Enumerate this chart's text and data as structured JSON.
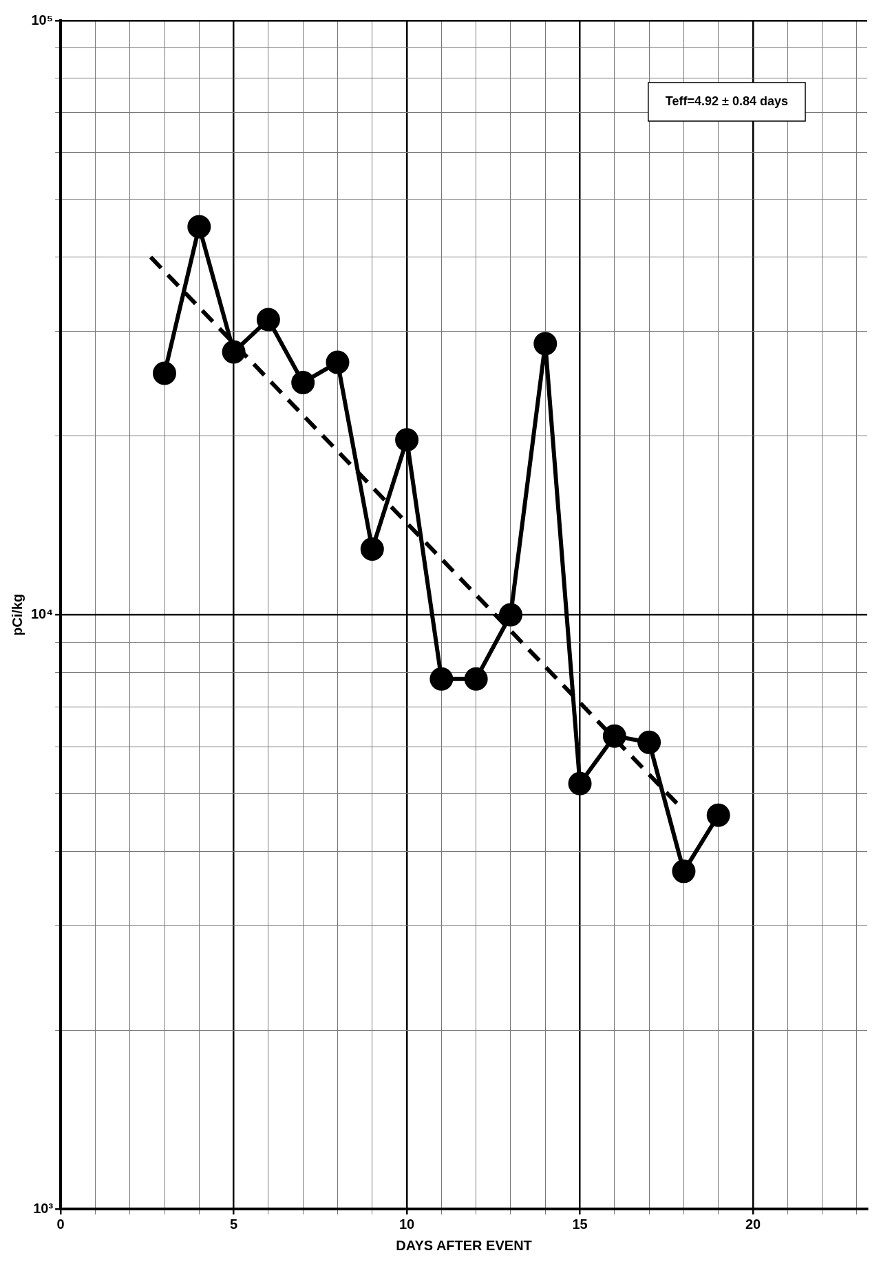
{
  "chart_data": {
    "type": "line",
    "xlabel": "DAYS AFTER EVENT",
    "ylabel": "pCi/kg",
    "xlim": [
      0,
      23.3
    ],
    "ylim": [
      1000,
      100000
    ],
    "log": "y",
    "grid": true,
    "legend": false,
    "xticks": [
      {
        "value": 0,
        "label": "0"
      },
      {
        "value": 1,
        "label": null
      },
      {
        "value": 2,
        "label": null
      },
      {
        "value": 3,
        "label": null
      },
      {
        "value": 4,
        "label": null
      },
      {
        "value": 5,
        "label": "5"
      },
      {
        "value": 6,
        "label": null
      },
      {
        "value": 7,
        "label": null
      },
      {
        "value": 8,
        "label": null
      },
      {
        "value": 9,
        "label": null
      },
      {
        "value": 10,
        "label": "10"
      },
      {
        "value": 11,
        "label": null
      },
      {
        "value": 12,
        "label": null
      },
      {
        "value": 13,
        "label": null
      },
      {
        "value": 14,
        "label": null
      },
      {
        "value": 15,
        "label": "15"
      },
      {
        "value": 16,
        "label": null
      },
      {
        "value": 17,
        "label": null
      },
      {
        "value": 18,
        "label": null
      },
      {
        "value": 19,
        "label": null
      },
      {
        "value": 20,
        "label": "20"
      },
      {
        "value": 21,
        "label": null
      },
      {
        "value": 22,
        "label": null
      },
      {
        "value": 23,
        "label": null
      }
    ],
    "yticks": [
      {
        "value": 1000,
        "label": "10³"
      },
      {
        "value": 2000,
        "label": null
      },
      {
        "value": 3000,
        "label": null
      },
      {
        "value": 4000,
        "label": null
      },
      {
        "value": 5000,
        "label": null
      },
      {
        "value": 6000,
        "label": null
      },
      {
        "value": 7000,
        "label": null
      },
      {
        "value": 8000,
        "label": null
      },
      {
        "value": 9000,
        "label": null
      },
      {
        "value": 10000,
        "label": "10⁴"
      },
      {
        "value": 20000,
        "label": null
      },
      {
        "value": 30000,
        "label": null
      },
      {
        "value": 40000,
        "label": null
      },
      {
        "value": 50000,
        "label": null
      },
      {
        "value": 60000,
        "label": null
      },
      {
        "value": 70000,
        "label": null
      },
      {
        "value": 80000,
        "label": null
      },
      {
        "value": 90000,
        "label": null
      },
      {
        "value": 100000,
        "label": "10⁵"
      }
    ],
    "series": [
      {
        "color": "#000000",
        "marker": "circle",
        "line_style": "solid",
        "x": [
          3,
          4,
          5,
          6,
          7,
          8,
          9,
          10,
          11,
          12,
          13,
          14,
          15,
          16,
          17,
          18,
          19
        ],
        "values": [
          25500,
          45000,
          27700,
          31400,
          24600,
          26600,
          12900,
          19700,
          7800,
          7800,
          10000,
          28600,
          5200,
          6250,
          6100,
          3700,
          4600
        ]
      },
      {
        "color": "#000000",
        "marker": "none",
        "line_style": "dashed",
        "x": [
          2.6,
          17.9
        ],
        "values": [
          40000,
          4750
        ]
      }
    ],
    "annotations": [
      "Teff=4.92 ± 0.84 days"
    ]
  }
}
